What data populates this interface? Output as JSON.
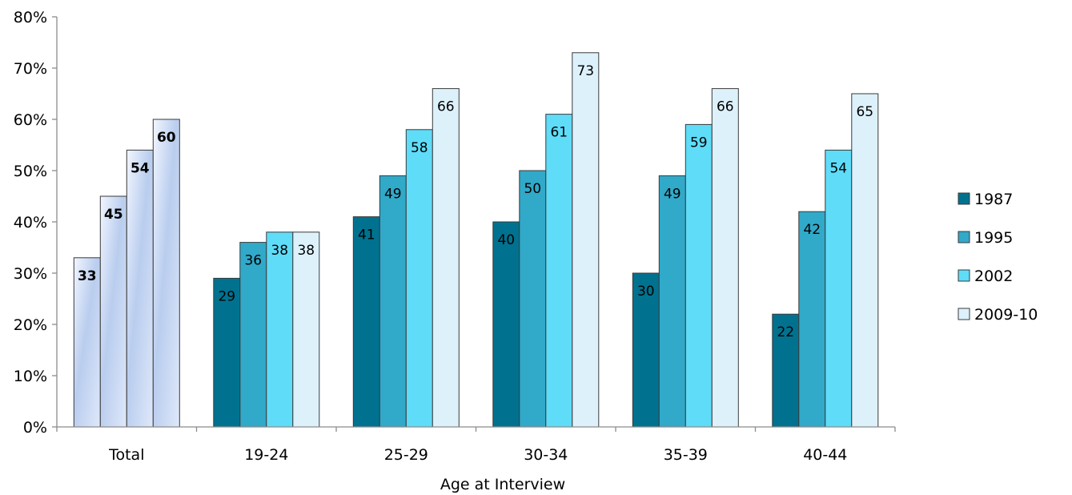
{
  "chart_data": {
    "type": "bar",
    "title": "",
    "xlabel": "Age at Interview",
    "ylabel": "",
    "ylim": [
      0,
      80
    ],
    "yticks": [
      "0%",
      "10%",
      "20%",
      "30%",
      "40%",
      "50%",
      "60%",
      "70%",
      "80%"
    ],
    "categories": [
      "Total",
      "19-24",
      "25-29",
      "30-34",
      "35-39",
      "40-44"
    ],
    "series": [
      {
        "name": "1987",
        "color": "#00728f",
        "values": [
          33,
          29,
          41,
          40,
          30,
          22
        ]
      },
      {
        "name": "1995",
        "color": "#31a9c9",
        "values": [
          45,
          36,
          49,
          50,
          49,
          42
        ]
      },
      {
        "name": "2002",
        "color": "#5fdcf8",
        "values": [
          54,
          38,
          58,
          61,
          59,
          54
        ]
      },
      {
        "name": "2009-10",
        "color": "#ddf1fb",
        "values": [
          60,
          38,
          66,
          73,
          66,
          65
        ]
      }
    ],
    "highlight_category": "Total",
    "grid": false,
    "legend_position": "right"
  }
}
